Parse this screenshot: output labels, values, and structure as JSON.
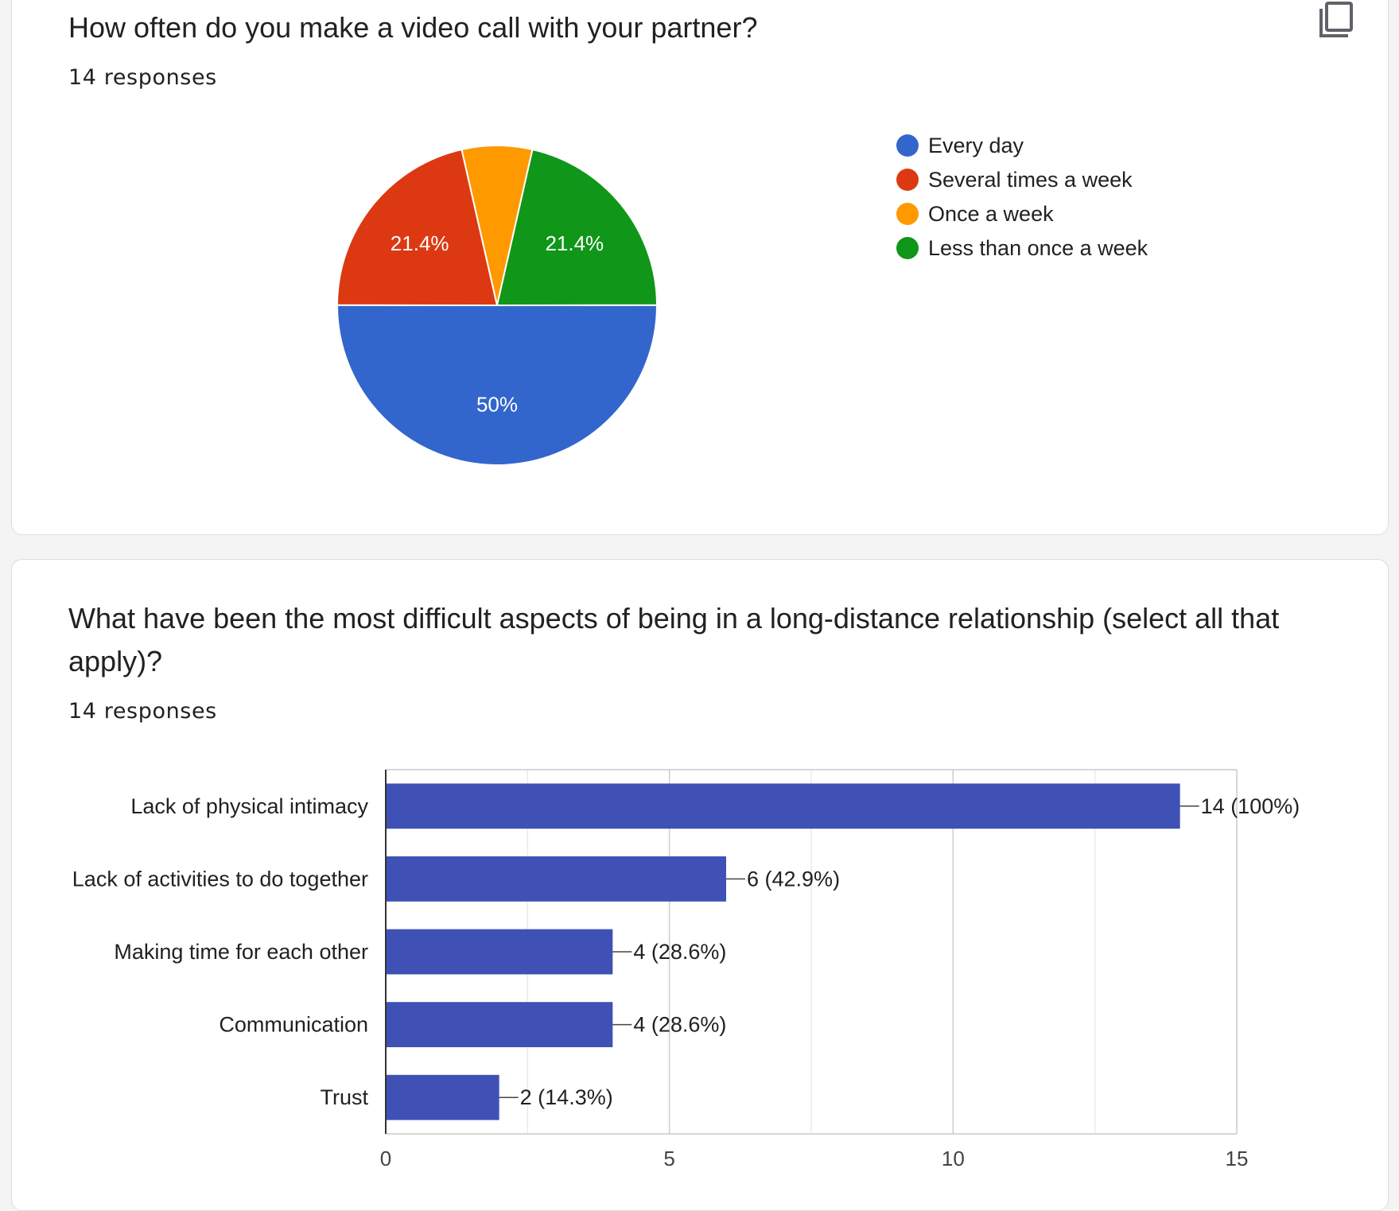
{
  "questions": [
    {
      "title": "How often do you make a video call with your partner?",
      "responses": "14 responses",
      "copy_icon": "copy-icon"
    },
    {
      "title": "What have been the most difficult aspects of being in a long-distance relationship (select all that apply)?",
      "responses": "14 responses"
    }
  ],
  "chart_data": [
    {
      "type": "pie",
      "title": "",
      "slices": [
        {
          "label": "Every day",
          "value": 50.0,
          "display": "50%",
          "color": "#3366cc"
        },
        {
          "label": "Several times a week",
          "value": 21.4,
          "display": "21.4%",
          "color": "#dc3912"
        },
        {
          "label": "Once a week",
          "value": 7.1,
          "display": "",
          "color": "#ff9900"
        },
        {
          "label": "Less than once a week",
          "value": 21.4,
          "display": "21.4%",
          "color": "#109618"
        }
      ],
      "legend_placement": "right"
    },
    {
      "type": "bar",
      "orientation": "horizontal",
      "title": "",
      "categories": [
        "Lack of physical intimacy",
        "Lack of activities to do together",
        "Making time for each other",
        "Communication",
        "Trust"
      ],
      "values": [
        14,
        6,
        4,
        4,
        2
      ],
      "data_labels": [
        "14 (100%)",
        "6 (42.9%)",
        "4 (28.6%)",
        "4 (28.6%)",
        "2 (14.3%)"
      ],
      "xlim": [
        0,
        15
      ],
      "xticks": [
        "0",
        "5",
        "10",
        "15"
      ],
      "grid": true,
      "color": "#3f51b5"
    }
  ]
}
